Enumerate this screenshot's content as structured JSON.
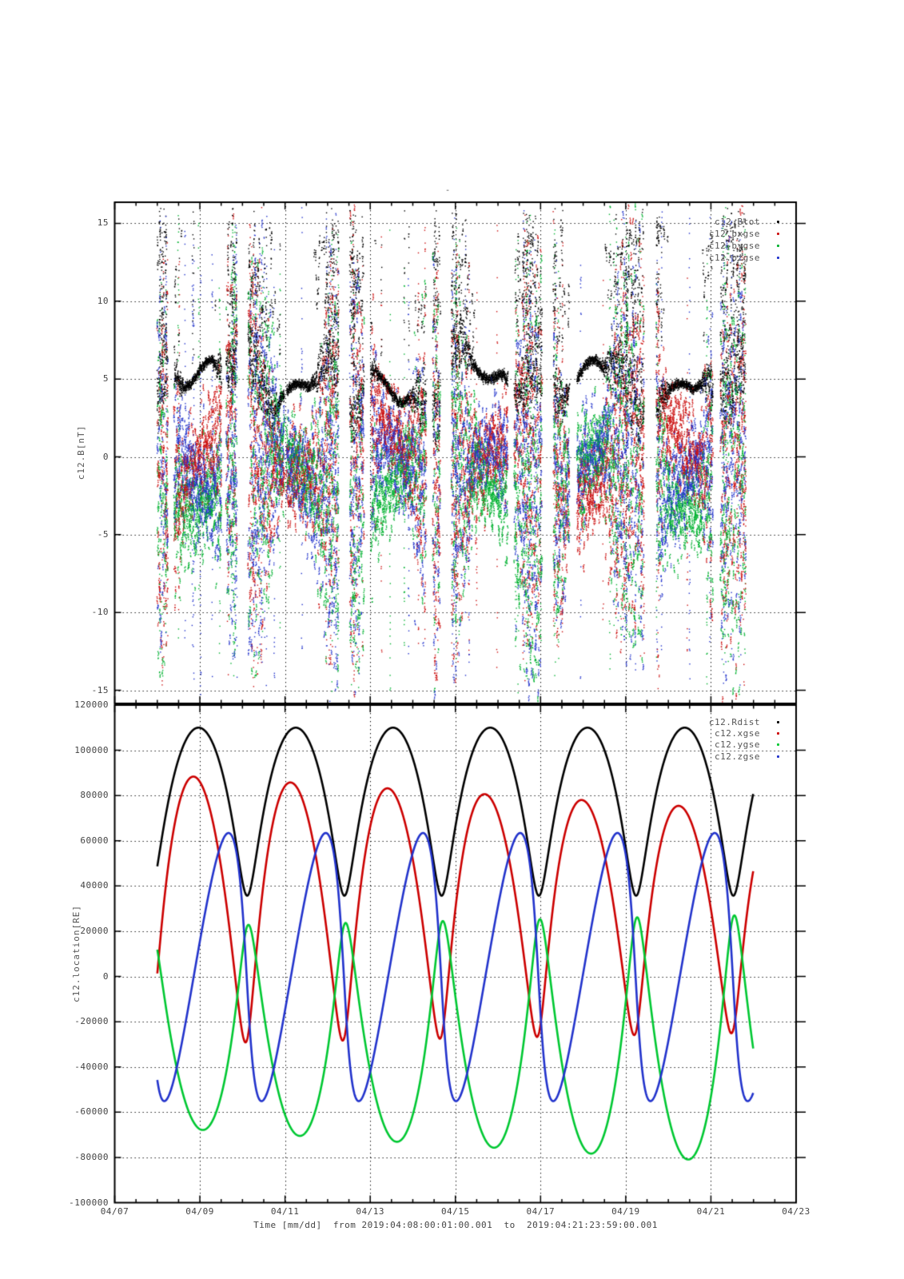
{
  "title": "-",
  "time_axis": {
    "label": "Time [mm/dd]  from 2019:04:08:00:01:00.001  to  2019:04:21:23:59:00.001",
    "tick_labels": [
      "04/07",
      "04/09",
      "04/11",
      "04/13",
      "04/15",
      "04/17",
      "04/19",
      "04/21",
      "04/23"
    ],
    "tick_days": [
      7,
      9,
      11,
      13,
      15,
      17,
      19,
      21,
      23
    ],
    "minor_tick_step_days": 0.5,
    "range_days": [
      7,
      23
    ],
    "data_start": "2019:04:08:00:01:00.001",
    "data_end": "2019:04:21:23:59:00.001",
    "data_start_day": 8.0007,
    "data_end_day": 21.9993
  },
  "chart_data": [
    {
      "type": "scatter",
      "name": "magnetic-field-panel",
      "ylabel": "c12.B[nT]",
      "ytick_values": [
        15,
        10,
        5,
        0,
        -5,
        -10,
        -15
      ],
      "ytick_labels": [
        "15",
        "10",
        "5",
        "0",
        "-5",
        "-10",
        "-15"
      ],
      "ylim": [
        -15.85,
        16.35
      ],
      "grid": true,
      "legend_position": "top-right-inside",
      "legend": [
        {
          "label": "c12.Btot",
          "color": "#000000"
        },
        {
          "label": "c12.bxgse",
          "color": "#cc1111"
        },
        {
          "label": "c12.bygse",
          "color": "#00b230"
        },
        {
          "label": "c12.bzgse",
          "color": "#2233cc"
        }
      ],
      "scatter_model": {
        "seed": 1234,
        "btot_quiet_level_nT": 5,
        "btot_quiet_spread_nT": 0.6,
        "component_full_range_nT": [
          -15.8,
          16.3
        ],
        "quiet_interval_centers_days": [
          8.97,
          11.25,
          13.54,
          15.82,
          18.1,
          20.38
        ],
        "disturbed_interval_centers_days": [
          7.83,
          10.11,
          12.39,
          14.68,
          16.96,
          19.24,
          21.53
        ],
        "step_days": 0.006
      }
    },
    {
      "type": "line",
      "name": "location-panel",
      "ylabel": "c12.location[RE]",
      "ytick_values": [
        120000,
        100000,
        80000,
        60000,
        40000,
        20000,
        0,
        -20000,
        -40000,
        -60000,
        -80000,
        -100000
      ],
      "ytick_labels": [
        "120000",
        "100000",
        "80000",
        "60000",
        "40000",
        "20000",
        "0",
        "-20000",
        "-40000",
        "-60000",
        "-80000",
        "-100000"
      ],
      "ylim": [
        -100000,
        120000
      ],
      "grid": true,
      "legend_position": "top-right-inside",
      "legend": [
        {
          "label": "c12.Rdist",
          "color": "#000000"
        },
        {
          "label": "c12.xgse",
          "color": "#cc0000"
        },
        {
          "label": "c12.ygse",
          "color": "#00c832"
        },
        {
          "label": "c12.zgse",
          "color": "#2233cc"
        }
      ],
      "orbit_model": {
        "period_days": 2.283,
        "perigee_epoch_day": 7.828,
        "semi_major_axis": 72850,
        "eccentricity": 0.51
      },
      "series": [
        {
          "name": "c12.Rdist",
          "color": "#000000",
          "projection": "radius",
          "extrema": {
            "max": 110000,
            "min": 35700,
            "max_days": [
              8.97,
              11.25,
              13.54,
              15.82,
              18.1,
              20.38
            ],
            "min_days": [
              10.11,
              12.39,
              14.68,
              16.96,
              19.24
            ]
          }
        },
        {
          "name": "c12.xgse",
          "color": "#cc0000",
          "projection": "plane",
          "A0": -0.8,
          "A_drift_per_day": 0.0105,
          "B": 0.2,
          "extrema": {
            "peak_values": [
              89200,
              86600,
              84200,
              81500,
              79200,
              76000
            ],
            "peak_days": [
              8.8,
              11.08,
              13.36,
              15.61,
              17.88,
              20.16
            ],
            "min_value": -29000
          }
        },
        {
          "name": "c12.ygse",
          "color": "#00c832",
          "projection": "plane",
          "A0": 0.6,
          "A_drift_per_day": 0.0105,
          "B": 0.12,
          "extrema": {
            "min_values": [
              -67600,
              -70900,
              -74100,
              -77000,
              -79800,
              -82000
            ],
            "min_days": [
              9.11,
              11.39,
              13.67,
              15.95,
              18.24,
              20.52
            ],
            "peak_values": [
              23500,
              24200,
              24500,
              24900,
              25400,
              25900
            ],
            "peak_days": [
              10.16,
              12.44,
              14.72,
              17.0,
              19.28,
              21.55
            ]
          }
        },
        {
          "name": "c12.zgse",
          "color": "#2233cc",
          "projection": "plane",
          "A0": -0.112,
          "A_drift_per_day": 0,
          "B": -0.937,
          "extrema": {
            "max_value": 63600,
            "max_days": [
              9.67,
              11.95,
              14.23,
              16.51,
              18.8,
              21.1
            ],
            "min_value": -55000,
            "min_days": [
              8.14,
              10.45,
              12.74,
              15.02,
              17.31,
              19.6
            ]
          }
        }
      ]
    }
  ]
}
